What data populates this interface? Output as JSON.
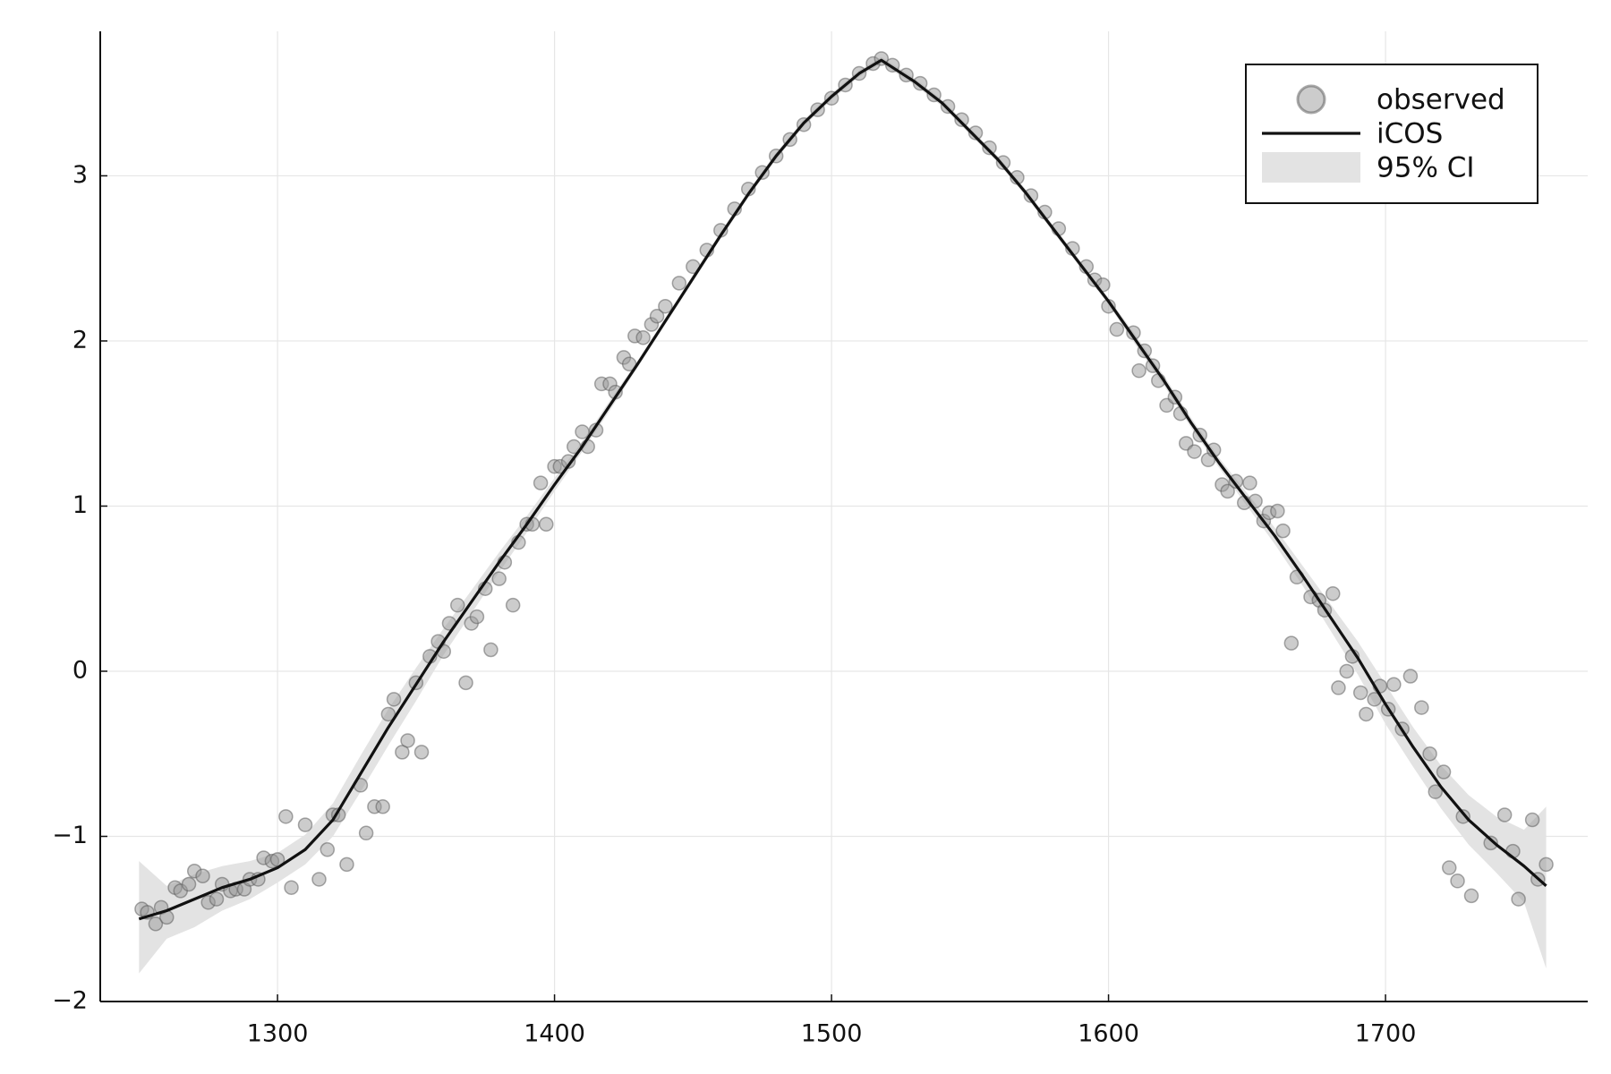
{
  "chart_data": {
    "type": "scatter",
    "xlim": [
      1236,
      1773
    ],
    "ylim": [
      -2.0,
      3.875
    ],
    "xticks": [
      1300,
      1400,
      1500,
      1600,
      1700
    ],
    "yticks": [
      {
        "value": -2,
        "label": "−2"
      },
      {
        "value": -1,
        "label": "−1"
      },
      0,
      1,
      2,
      3
    ],
    "grid": true,
    "legend": "top right",
    "series": [
      {
        "name": "observed",
        "type": "scatter",
        "color": "#999999",
        "x": [
          1251,
          1253,
          1256,
          1258,
          1260,
          1263,
          1265,
          1268,
          1270,
          1273,
          1275,
          1278,
          1280,
          1283,
          1285,
          1288,
          1290,
          1293,
          1295,
          1298,
          1300,
          1303,
          1305,
          1310,
          1315,
          1318,
          1320,
          1322,
          1325,
          1330,
          1332,
          1335,
          1338,
          1340,
          1342,
          1345,
          1347,
          1350,
          1352,
          1355,
          1358,
          1360,
          1362,
          1365,
          1368,
          1370,
          1372,
          1375,
          1377,
          1380,
          1382,
          1385,
          1387,
          1390,
          1392,
          1395,
          1397,
          1400,
          1402,
          1405,
          1407,
          1410,
          1412,
          1415,
          1417,
          1420,
          1422,
          1425,
          1427,
          1429,
          1432,
          1435,
          1437,
          1440,
          1445,
          1450,
          1455,
          1460,
          1465,
          1470,
          1475,
          1480,
          1485,
          1490,
          1495,
          1500,
          1505,
          1510,
          1515,
          1518,
          1522,
          1527,
          1532,
          1537,
          1542,
          1547,
          1552,
          1557,
          1562,
          1567,
          1572,
          1577,
          1582,
          1587,
          1592,
          1595,
          1598,
          1600,
          1603,
          1609,
          1611,
          1613,
          1616,
          1618,
          1621,
          1624,
          1626,
          1628,
          1631,
          1633,
          1636,
          1638,
          1641,
          1643,
          1646,
          1649,
          1651,
          1653,
          1656,
          1658,
          1661,
          1663,
          1666,
          1668,
          1673,
          1676,
          1678,
          1681,
          1683,
          1686,
          1688,
          1691,
          1693,
          1696,
          1698,
          1701,
          1703,
          1706,
          1709,
          1713,
          1716,
          1718,
          1721,
          1723,
          1726,
          1728,
          1731,
          1738,
          1743,
          1746,
          1748,
          1753,
          1755,
          1758
        ],
        "values": [
          -1.44,
          -1.46,
          -1.53,
          -1.43,
          -1.49,
          -1.31,
          -1.33,
          -1.29,
          -1.21,
          -1.24,
          -1.4,
          -1.38,
          -1.29,
          -1.33,
          -1.32,
          -1.32,
          -1.26,
          -1.26,
          -1.13,
          -1.15,
          -1.14,
          -0.88,
          -1.31,
          -0.93,
          -1.26,
          -1.08,
          -0.87,
          -0.87,
          -1.17,
          -0.69,
          -0.98,
          -0.82,
          -0.82,
          -0.26,
          -0.17,
          -0.49,
          -0.42,
          -0.07,
          -0.49,
          0.09,
          0.18,
          0.12,
          0.29,
          0.4,
          -0.07,
          0.29,
          0.33,
          0.5,
          0.13,
          0.56,
          0.66,
          0.4,
          0.78,
          0.89,
          0.89,
          1.14,
          0.89,
          1.24,
          1.24,
          1.27,
          1.36,
          1.45,
          1.36,
          1.46,
          1.74,
          1.74,
          1.69,
          1.9,
          1.86,
          2.03,
          2.02,
          2.1,
          2.15,
          2.21,
          2.35,
          2.45,
          2.55,
          2.67,
          2.8,
          2.92,
          3.02,
          3.12,
          3.22,
          3.31,
          3.4,
          3.47,
          3.55,
          3.62,
          3.68,
          3.71,
          3.67,
          3.61,
          3.56,
          3.49,
          3.42,
          3.34,
          3.26,
          3.17,
          3.08,
          2.99,
          2.88,
          2.78,
          2.68,
          2.56,
          2.45,
          2.37,
          2.34,
          2.21,
          2.07,
          2.05,
          1.82,
          1.94,
          1.85,
          1.76,
          1.61,
          1.66,
          1.56,
          1.38,
          1.33,
          1.43,
          1.28,
          1.34,
          1.13,
          1.09,
          1.15,
          1.02,
          1.14,
          1.03,
          0.91,
          0.96,
          0.97,
          0.85,
          0.17,
          0.57,
          0.45,
          0.43,
          0.37,
          0.47,
          -0.1,
          0.0,
          0.09,
          -0.13,
          -0.26,
          -0.17,
          -0.09,
          -0.23,
          -0.08,
          -0.35,
          -0.03,
          -0.22,
          -0.5,
          -0.73,
          -0.61,
          -1.19,
          -1.27,
          -0.88,
          -1.36,
          -1.04,
          -0.87,
          -1.09,
          -1.38,
          -0.9,
          -1.26,
          -1.17
        ]
      },
      {
        "name": "iCOS",
        "type": "line",
        "color": "#111111",
        "x": [
          1250,
          1260,
          1270,
          1280,
          1290,
          1300,
          1310,
          1320,
          1330,
          1340,
          1350,
          1360,
          1370,
          1380,
          1390,
          1400,
          1410,
          1420,
          1430,
          1440,
          1450,
          1460,
          1470,
          1480,
          1490,
          1500,
          1510,
          1518,
          1530,
          1540,
          1550,
          1560,
          1570,
          1580,
          1590,
          1600,
          1610,
          1620,
          1630,
          1640,
          1650,
          1660,
          1670,
          1680,
          1690,
          1700,
          1710,
          1720,
          1730,
          1740,
          1750,
          1758
        ],
        "values": [
          -1.5,
          -1.45,
          -1.38,
          -1.31,
          -1.26,
          -1.19,
          -1.08,
          -0.9,
          -0.62,
          -0.34,
          -0.08,
          0.18,
          0.42,
          0.66,
          0.89,
          1.13,
          1.36,
          1.61,
          1.86,
          2.12,
          2.38,
          2.64,
          2.89,
          3.12,
          3.32,
          3.48,
          3.62,
          3.7,
          3.57,
          3.44,
          3.27,
          3.1,
          2.9,
          2.68,
          2.46,
          2.24,
          2.0,
          1.76,
          1.5,
          1.26,
          1.04,
          0.82,
          0.58,
          0.33,
          0.08,
          -0.2,
          -0.46,
          -0.7,
          -0.9,
          -1.05,
          -1.18,
          -1.3
        ]
      },
      {
        "name": "95% CI",
        "type": "band",
        "color": "#e3e3e3",
        "x": [
          1250,
          1260,
          1270,
          1280,
          1290,
          1300,
          1310,
          1320,
          1330,
          1340,
          1350,
          1360,
          1370,
          1380,
          1390,
          1400,
          1410,
          1420,
          1430,
          1440,
          1450,
          1460,
          1470,
          1480,
          1490,
          1500,
          1510,
          1518,
          1530,
          1540,
          1550,
          1560,
          1570,
          1580,
          1590,
          1600,
          1610,
          1620,
          1630,
          1640,
          1650,
          1660,
          1670,
          1680,
          1690,
          1700,
          1710,
          1720,
          1730,
          1740,
          1750,
          1758
        ],
        "lower": [
          -1.83,
          -1.62,
          -1.55,
          -1.45,
          -1.38,
          -1.28,
          -1.17,
          -1.0,
          -0.73,
          -0.45,
          -0.18,
          0.1,
          0.35,
          0.6,
          0.84,
          1.09,
          1.33,
          1.58,
          1.84,
          2.1,
          2.36,
          2.62,
          2.87,
          3.1,
          3.3,
          3.46,
          3.6,
          3.68,
          3.55,
          3.42,
          3.25,
          3.08,
          2.88,
          2.66,
          2.44,
          2.22,
          1.97,
          1.73,
          1.47,
          1.23,
          1.0,
          0.77,
          0.52,
          0.25,
          -0.02,
          -0.32,
          -0.58,
          -0.83,
          -1.05,
          -1.22,
          -1.4,
          -1.8
        ],
        "upper": [
          -1.15,
          -1.3,
          -1.23,
          -1.18,
          -1.15,
          -1.1,
          -0.99,
          -0.8,
          -0.51,
          -0.23,
          0.02,
          0.26,
          0.49,
          0.72,
          0.94,
          1.17,
          1.39,
          1.64,
          1.88,
          2.14,
          2.4,
          2.66,
          2.91,
          3.14,
          3.34,
          3.5,
          3.64,
          3.72,
          3.59,
          3.46,
          3.29,
          3.12,
          2.92,
          2.7,
          2.48,
          2.26,
          2.03,
          1.79,
          1.53,
          1.29,
          1.08,
          0.87,
          0.64,
          0.41,
          0.18,
          -0.08,
          -0.34,
          -0.57,
          -0.75,
          -0.88,
          -0.96,
          -0.82
        ]
      }
    ]
  }
}
